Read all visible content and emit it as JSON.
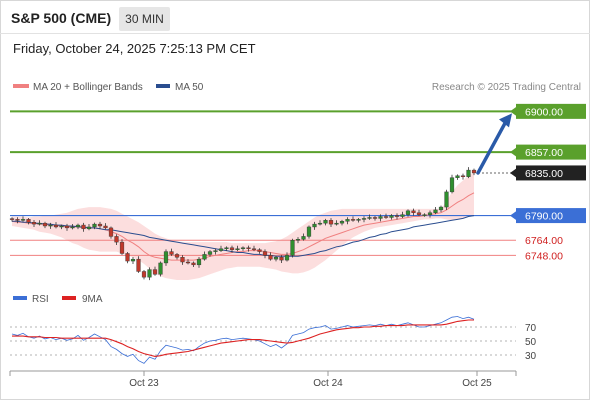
{
  "header": {
    "symbol": "S&P 500 (CME)",
    "timeframe": "30 MIN",
    "timestamp": "Friday, October 24, 2025 7:25:13 PM CET"
  },
  "credit": "Research © 2025 Trading Central",
  "colors": {
    "resistance": "#5aa02c",
    "support": "#3b6fd6",
    "ma20_bollinger": "#f08080",
    "ma50": "#2a4d8f",
    "rsi": "#3b6fd6",
    "rsi_ma": "#dd2222",
    "arrow": "#2a5aa8",
    "candle_up": "#2f8f2f",
    "candle_down": "#c0392b"
  },
  "chart_data": [
    {
      "type": "candlestick",
      "legend": [
        "MA 20 + Bollinger Bands",
        "MA 50"
      ],
      "x_ticks": [
        "Oct 23",
        "Oct 24",
        "Oct 25"
      ],
      "ylim": [
        6722,
        6912
      ],
      "levels": [
        {
          "label": "6900.00",
          "value": 6900,
          "kind": "resistance"
        },
        {
          "label": "6857.00",
          "value": 6857,
          "kind": "resistance"
        },
        {
          "label": "6835.00",
          "value": 6835,
          "kind": "last"
        },
        {
          "label": "6790.00",
          "value": 6790,
          "kind": "support"
        },
        {
          "label": "6764.00",
          "value": 6764,
          "kind": "minor"
        },
        {
          "label": "6748.00",
          "value": 6748,
          "kind": "minor"
        }
      ],
      "target_arrow": {
        "from_value": 6835,
        "to_value": 6900
      },
      "series": [
        {
          "name": "price",
          "values": [
            6786,
            6785,
            6786,
            6783,
            6781,
            6782,
            6779,
            6780,
            6778,
            6779,
            6777,
            6778,
            6780,
            6776,
            6778,
            6781,
            6779,
            6777,
            6768,
            6762,
            6750,
            6742,
            6744,
            6731,
            6725,
            6733,
            6728,
            6740,
            6752,
            6749,
            6746,
            6741,
            6740,
            6738,
            6744,
            6749,
            6752,
            6753,
            6755,
            6756,
            6754,
            6755,
            6756,
            6755,
            6754,
            6752,
            6748,
            6744,
            6746,
            6743,
            6748,
            6764,
            6765,
            6768,
            6778,
            6781,
            6782,
            6785,
            6781,
            6782,
            6784,
            6786,
            6785,
            6786,
            6787,
            6788,
            6787,
            6789,
            6788,
            6790,
            6789,
            6791,
            6795,
            6793,
            6791,
            6791,
            6793,
            6796,
            6799,
            6815,
            6830,
            6832,
            6831,
            6838,
            6835
          ]
        },
        {
          "name": "MA 20",
          "values": [
            6784,
            6783,
            6783,
            6782,
            6782,
            6781,
            6781,
            6780,
            6780,
            6779,
            6778,
            6778,
            6778,
            6777,
            6777,
            6777,
            6776,
            6775,
            6773,
            6771,
            6768,
            6764,
            6761,
            6757,
            6752,
            6748,
            6746,
            6745,
            6744,
            6743,
            6743,
            6743,
            6743,
            6743,
            6744,
            6745,
            6747,
            6748,
            6749,
            6750,
            6751,
            6752,
            6752,
            6753,
            6753,
            6753,
            6752,
            6751,
            6750,
            6749,
            6749,
            6750,
            6752,
            6754,
            6757,
            6760,
            6763,
            6766,
            6768,
            6770,
            6772,
            6774,
            6776,
            6778,
            6780,
            6781,
            6782,
            6783,
            6784,
            6785,
            6786,
            6787,
            6788,
            6789,
            6789,
            6790,
            6791,
            6792,
            6793,
            6796,
            6800,
            6804,
            6807,
            6811,
            6814
          ]
        },
        {
          "name": "Bollinger upper",
          "values": [
            6789,
            6789,
            6789,
            6788,
            6789,
            6789,
            6790,
            6790,
            6791,
            6792,
            6793,
            6795,
            6797,
            6798,
            6799,
            6799,
            6799,
            6798,
            6797,
            6795,
            6792,
            6789,
            6786,
            6783,
            6779,
            6775,
            6771,
            6768,
            6766,
            6764,
            6763,
            6762,
            6762,
            6762,
            6762,
            6762,
            6762,
            6762,
            6762,
            6762,
            6761,
            6761,
            6761,
            6761,
            6761,
            6761,
            6761,
            6762,
            6763,
            6765,
            6768,
            6772,
            6776,
            6780,
            6784,
            6788,
            6791,
            6793,
            6795,
            6796,
            6797,
            6797,
            6797,
            6797,
            6797,
            6797,
            6797,
            6797,
            6797,
            6797,
            6797,
            6797,
            6797,
            6797,
            6797,
            6797,
            6797,
            6797,
            6797,
            6805,
            6815,
            6822,
            6827,
            6832,
            6836
          ]
        },
        {
          "name": "Bollinger lower",
          "values": [
            6779,
            6778,
            6777,
            6776,
            6775,
            6773,
            6772,
            6771,
            6769,
            6767,
            6764,
            6761,
            6759,
            6756,
            6754,
            6753,
            6752,
            6752,
            6752,
            6752,
            6750,
            6748,
            6746,
            6743,
            6739,
            6734,
            6729,
            6726,
            6724,
            6723,
            6722,
            6722,
            6722,
            6723,
            6724,
            6726,
            6728,
            6730,
            6732,
            6734,
            6735,
            6736,
            6736,
            6736,
            6736,
            6736,
            6735,
            6734,
            6733,
            6731,
            6730,
            6729,
            6729,
            6730,
            6732,
            6735,
            6739,
            6743,
            6748,
            6753,
            6758,
            6763,
            6767,
            6770,
            6773,
            6775,
            6777,
            6778,
            6779,
            6780,
            6781,
            6782,
            6783,
            6784,
            6785,
            6786,
            6786,
            6787,
            6787,
            6786,
            6785,
            6786,
            6787,
            6789,
            6791
          ]
        },
        {
          "name": "MA 50",
          "values": [
            6784,
            6784,
            6783,
            6783,
            6782,
            6782,
            6781,
            6781,
            6780,
            6780,
            6779,
            6779,
            6778,
            6778,
            6777,
            6777,
            6776,
            6775,
            6775,
            6774,
            6773,
            6772,
            6771,
            6770,
            6769,
            6767,
            6766,
            6765,
            6764,
            6763,
            6762,
            6761,
            6760,
            6759,
            6758,
            6757,
            6756,
            6755,
            6754,
            6753,
            6752,
            6751,
            6751,
            6750,
            6749,
            6749,
            6748,
            6748,
            6747,
            6747,
            6747,
            6747,
            6747,
            6748,
            6749,
            6750,
            6752,
            6753,
            6755,
            6757,
            6758,
            6760,
            6762,
            6763,
            6765,
            6767,
            6768,
            6770,
            6771,
            6773,
            6774,
            6775,
            6776,
            6778,
            6779,
            6780,
            6781,
            6782,
            6783,
            6784,
            6785,
            6786,
            6787,
            6789,
            6790
          ]
        }
      ]
    },
    {
      "type": "line",
      "legend": [
        "RSI",
        "9MA"
      ],
      "y_ticks": [
        "70",
        "50",
        "30"
      ],
      "ylim": [
        10,
        90
      ],
      "series": [
        {
          "name": "RSI",
          "values": [
            60,
            58,
            61,
            56,
            54,
            57,
            53,
            55,
            52,
            54,
            51,
            53,
            58,
            51,
            55,
            60,
            56,
            52,
            42,
            38,
            32,
            28,
            31,
            22,
            18,
            27,
            24,
            36,
            44,
            42,
            40,
            37,
            38,
            36,
            42,
            47,
            50,
            51,
            53,
            54,
            52,
            53,
            54,
            53,
            52,
            50,
            46,
            42,
            45,
            40,
            46,
            58,
            60,
            62,
            67,
            69,
            70,
            72,
            67,
            68,
            70,
            72,
            70,
            71,
            72,
            73,
            72,
            74,
            72,
            74,
            72,
            74,
            76,
            73,
            70,
            70,
            72,
            74,
            76,
            80,
            84,
            85,
            82,
            84,
            81
          ]
        },
        {
          "name": "9MA",
          "values": [
            57,
            57,
            57,
            56,
            56,
            56,
            55,
            55,
            55,
            54,
            54,
            54,
            54,
            54,
            54,
            54,
            54,
            54,
            52,
            49,
            46,
            42,
            39,
            35,
            32,
            30,
            28,
            29,
            31,
            32,
            33,
            34,
            35,
            37,
            39,
            41,
            43,
            45,
            47,
            48,
            49,
            50,
            51,
            52,
            52,
            52,
            51,
            50,
            49,
            48,
            47,
            48,
            50,
            52,
            54,
            57,
            60,
            62,
            64,
            66,
            67,
            68,
            69,
            69,
            70,
            70,
            71,
            71,
            72,
            72,
            72,
            72,
            73,
            73,
            73,
            73,
            73,
            73,
            73,
            74,
            76,
            78,
            79,
            80,
            80
          ]
        }
      ]
    }
  ]
}
